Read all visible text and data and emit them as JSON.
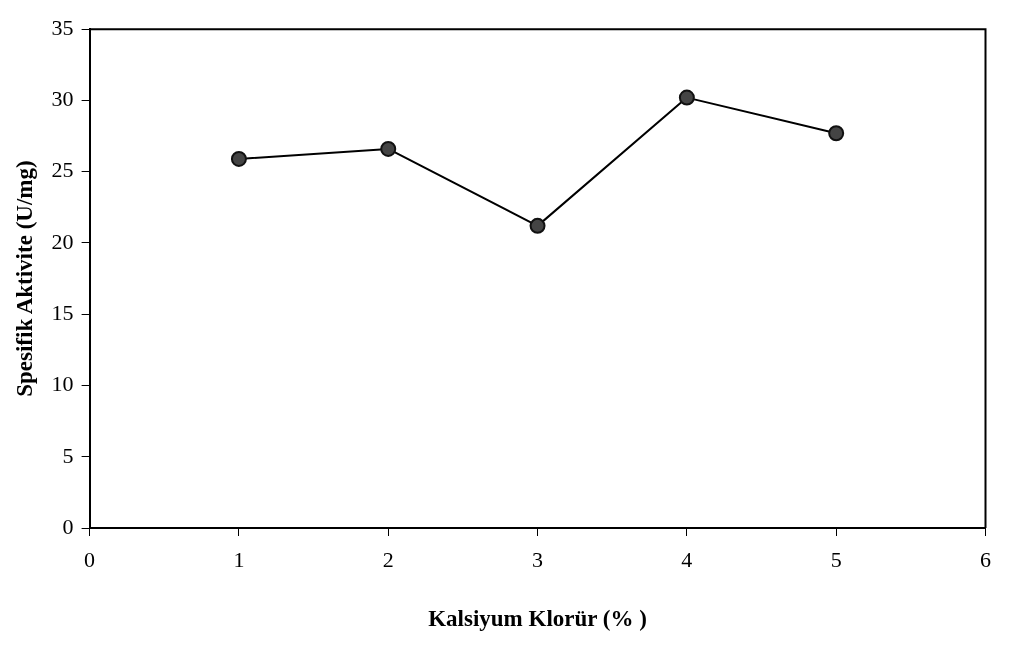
{
  "chart_data": {
    "type": "line",
    "xlabel": "Kalsiyum Klorür (% )",
    "ylabel": "Spesifik Aktivite (U/mg)",
    "x": [
      1,
      2,
      3,
      4,
      5
    ],
    "series": [
      {
        "color": "#000000",
        "values": [
          25.9,
          26.6,
          21.2,
          30.2,
          27.7
        ]
      }
    ],
    "xlim": [
      0,
      6
    ],
    "xticks": [
      0,
      1,
      2,
      3,
      4,
      5,
      6
    ],
    "ylim": [
      0,
      35
    ],
    "yticks": [
      0,
      5,
      10,
      15,
      20,
      25,
      30,
      35
    ],
    "marker": "circle",
    "line_style": "solid",
    "grid": false,
    "legend": false
  }
}
